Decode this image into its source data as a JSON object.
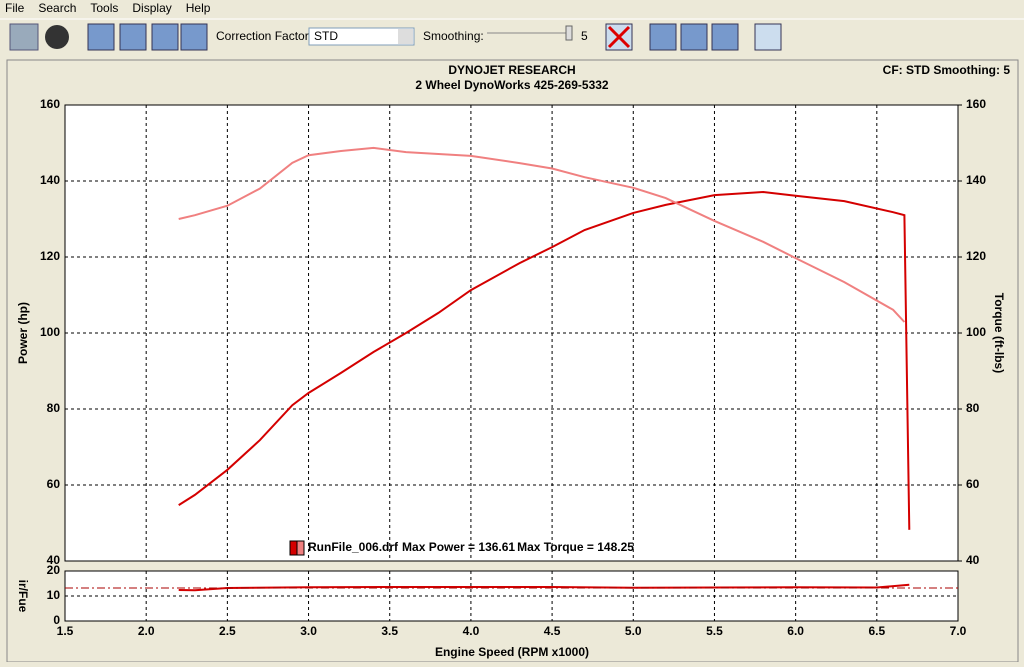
{
  "menu": [
    "File",
    "Search",
    "Tools",
    "Display",
    "Help"
  ],
  "toolbar": {
    "correction_label": "Correction Factor:",
    "correction_value": "STD",
    "smoothing_label": "Smoothing:",
    "smoothing_value": "5"
  },
  "header": {
    "title": "DYNOJET RESEARCH",
    "subtitle": "2 Wheel DynoWorks 425-269-5332",
    "status": "CF: STD  Smoothing: 5"
  },
  "chart_data": [
    {
      "type": "line",
      "ylabel": "Power (hp)",
      "y2label": "Torque (ft-lbs)",
      "xlim": [
        1.5,
        7.0
      ],
      "ylim": [
        40,
        160
      ],
      "yticks": [
        40,
        60,
        80,
        100,
        120,
        140,
        160
      ],
      "y2lim": [
        40,
        160
      ],
      "y2ticks": [
        40,
        60,
        80,
        100,
        120,
        140,
        160
      ],
      "grid": true,
      "x": [
        2.2,
        2.3,
        2.5,
        2.7,
        2.9,
        3.0,
        3.2,
        3.4,
        3.6,
        3.8,
        4.0,
        4.3,
        4.5,
        4.7,
        5.0,
        5.2,
        5.5,
        5.8,
        6.0,
        6.3,
        6.6,
        6.67,
        6.7
      ],
      "series": [
        {
          "color": "#d40000",
          "values": [
            54.7,
            57.4,
            64,
            71.8,
            81,
            84.2,
            89.5,
            95,
            100,
            105.3,
            111.3,
            118.4,
            122.6,
            127.1,
            131.6,
            133.7,
            136.3,
            137.1,
            136.1,
            134.7,
            131.8,
            131,
            48.2
          ]
        },
        {
          "color": "#f08080",
          "axis": "y2",
          "values": [
            130,
            131,
            133.5,
            138,
            144.8,
            146.8,
            147.9,
            148.7,
            147.6,
            147.1,
            146.6,
            144.7,
            143.3,
            141,
            138.2,
            135.5,
            129.5,
            124,
            119.7,
            113.4,
            106.1,
            102.9,
            null
          ]
        }
      ],
      "legend": {
        "file": "RunFile_006.drf",
        "power": "Max Power = 136.61",
        "torque": "Max Torque = 148.25"
      }
    },
    {
      "type": "line",
      "ylabel": "ir/Fue",
      "xlabel": "Engine Speed (RPM x1000)",
      "xlim": [
        1.5,
        7.0
      ],
      "xticks": [
        {
          "value": 1.5,
          "label": "1.5"
        },
        {
          "value": 2.0,
          "label": "2.0"
        },
        {
          "value": 2.5,
          "label": "2.5"
        },
        {
          "value": 3.0,
          "label": "3.0"
        },
        {
          "value": 3.5,
          "label": "3.5"
        },
        {
          "value": 4.0,
          "label": "4.0"
        },
        {
          "value": 4.5,
          "label": "4.5"
        },
        {
          "value": 5.0,
          "label": "5.0"
        },
        {
          "value": 5.5,
          "label": "5.5"
        },
        {
          "value": 6.0,
          "label": "6.0"
        },
        {
          "value": 6.5,
          "label": "6.5"
        },
        {
          "value": 7.0,
          "label": "7.0"
        }
      ],
      "ylim": [
        0,
        20
      ],
      "yticks": [
        0,
        10,
        20
      ],
      "grid": true,
      "reference": 13.2,
      "x": [
        2.2,
        2.3,
        2.5,
        3.0,
        3.5,
        4.0,
        4.5,
        5.0,
        5.5,
        6.0,
        6.5,
        6.7
      ],
      "series": [
        {
          "color": "#d40000",
          "values": [
            12.4,
            12.3,
            13.2,
            13.5,
            13.6,
            13.6,
            13.6,
            13.3,
            13.4,
            13.5,
            13.4,
            14.5
          ]
        }
      ]
    }
  ]
}
